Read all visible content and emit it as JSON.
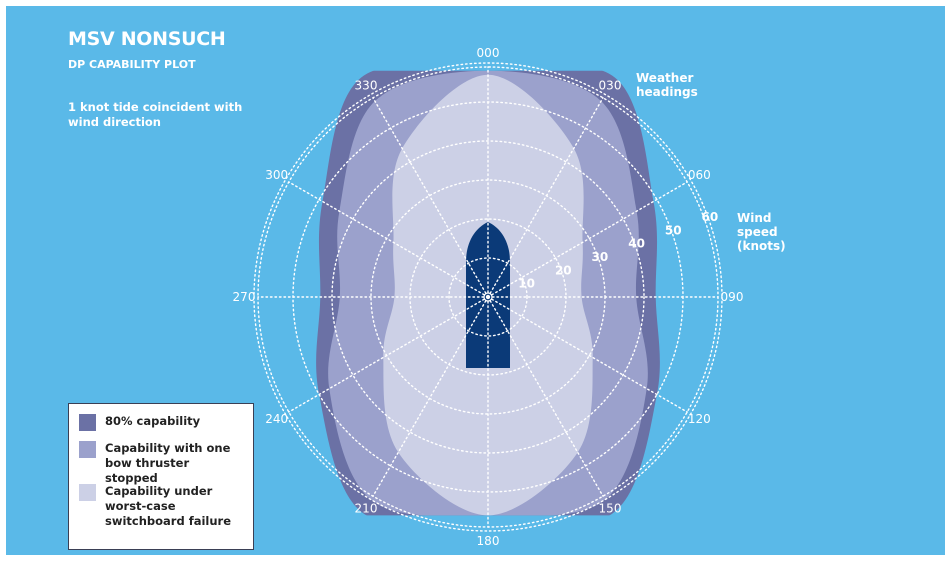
{
  "title": "MSV NONSUCH",
  "subtitle": "DP CAPABILITY PLOT",
  "note": "1 knot tide coincident with wind direction",
  "colors": {
    "background": "#5ab9e8",
    "cap80": "#6b71a5",
    "bow_thruster": "#9ba1cc",
    "switchboard": "#ccd0e6",
    "vessel": "#0b3a78"
  },
  "chart_data": {
    "type": "polar",
    "title": "MSV NONSUCH",
    "subtitle": "DP CAPABILITY PLOT",
    "angular_axis": {
      "label": "Weather headings",
      "ticks": [
        "000",
        "030",
        "060",
        "090",
        "120",
        "150",
        "180",
        "210",
        "240",
        "270",
        "300",
        "330"
      ]
    },
    "radial_axis": {
      "label": "Wind speed (knots)",
      "ticks": [
        10,
        20,
        30,
        40,
        50,
        60
      ],
      "range": [
        0,
        60
      ]
    },
    "grid": true,
    "legend_position": "bottom-left",
    "series": [
      {
        "name": "80% capability",
        "color": "#6b71a5",
        "headings": [
          0,
          30,
          60,
          90,
          120,
          150,
          180,
          210,
          240,
          270,
          300,
          330
        ],
        "wind_speed": [
          58,
          65,
          49,
          43,
          50,
          64,
          56,
          64,
          50,
          43,
          49,
          65
        ]
      },
      {
        "name": "Capability with one bow thruster stopped",
        "color": "#9ba1cc",
        "headings": [
          0,
          30,
          60,
          90,
          120,
          150,
          180,
          210,
          240,
          270,
          300,
          330
        ],
        "wind_speed": [
          58,
          58,
          44,
          38,
          47,
          60,
          56,
          60,
          47,
          38,
          44,
          58
        ]
      },
      {
        "name": "Capability under worst-case switchboard failure",
        "color": "#ccd0e6",
        "headings": [
          0,
          30,
          60,
          90,
          120,
          150,
          180,
          210,
          240,
          270,
          300,
          330
        ],
        "wind_speed": [
          57,
          44,
          28,
          24,
          31,
          46,
          56,
          46,
          31,
          24,
          28,
          44
        ]
      }
    ]
  },
  "labels": {
    "weather_headings": [
      "Weather",
      "headings"
    ],
    "wind_speed": [
      "Wind",
      "speed",
      "(knots)"
    ]
  }
}
